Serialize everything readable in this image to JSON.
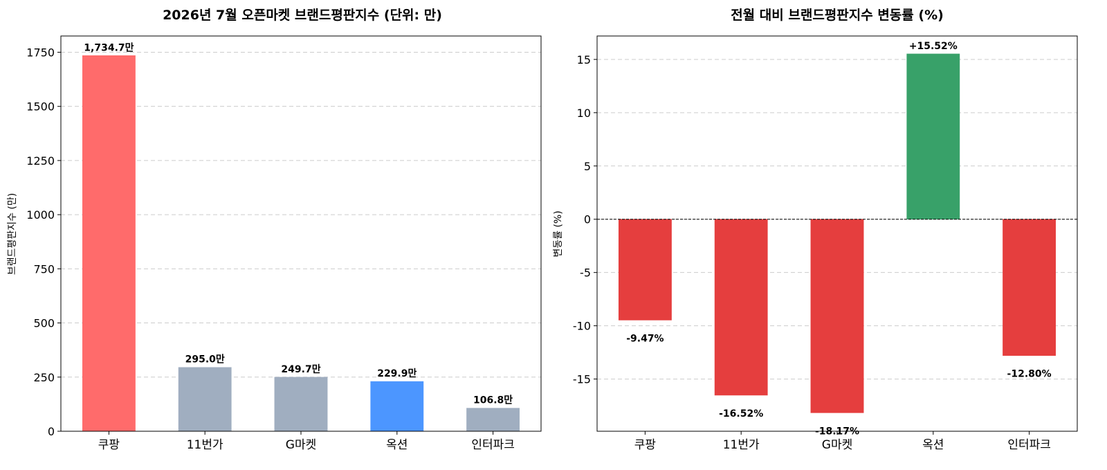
{
  "chart_data": [
    {
      "type": "bar",
      "title": "2026년 7월 오픈마켓 브랜드평판지수 (단위: 만)",
      "xlabel": "",
      "ylabel": "브랜드평판지수 (만)",
      "categories": [
        "쿠팡",
        "11번가",
        "G마켓",
        "옥션",
        "인터파크"
      ],
      "values": [
        1734.7,
        295.0,
        249.7,
        229.9,
        106.8
      ],
      "value_labels": [
        "1,734.7만",
        "295.0만",
        "249.7만",
        "229.9만",
        "106.8만"
      ],
      "colors": [
        "#ff6b6b",
        "#a0aec0",
        "#a0aec0",
        "#4c96ff",
        "#a0aec0"
      ],
      "ylim": [
        0,
        1825
      ],
      "yticks": [
        0,
        250,
        500,
        750,
        1000,
        1250,
        1500,
        1750
      ],
      "ytick_labels": [
        "0",
        "250",
        "500",
        "750",
        "1000",
        "1250",
        "1500",
        "1750"
      ],
      "grid": "y-dashed",
      "legend": "none"
    },
    {
      "type": "bar",
      "title": "전월 대비 브랜드평판지수 변동률 (%)",
      "xlabel": "",
      "ylabel": "변동률 (%)",
      "categories": [
        "쿠팡",
        "11번가",
        "G마켓",
        "옥션",
        "인터파크"
      ],
      "values": [
        -9.47,
        -16.52,
        -18.17,
        15.52,
        -12.8
      ],
      "value_labels": [
        "-9.47%",
        "-16.52%",
        "-18.17%",
        "+15.52%",
        "-12.80%"
      ],
      "colors": [
        "#e53e3e",
        "#e53e3e",
        "#e53e3e",
        "#38a169",
        "#e53e3e"
      ],
      "ylim": [
        -19.9,
        17.2
      ],
      "yticks": [
        -15,
        -10,
        -5,
        0,
        5,
        10,
        15
      ],
      "ytick_labels": [
        "-15",
        "-10",
        "-5",
        "0",
        "5",
        "10",
        "15"
      ],
      "zero_line": true,
      "grid": "y-dashed",
      "legend": "none"
    }
  ]
}
